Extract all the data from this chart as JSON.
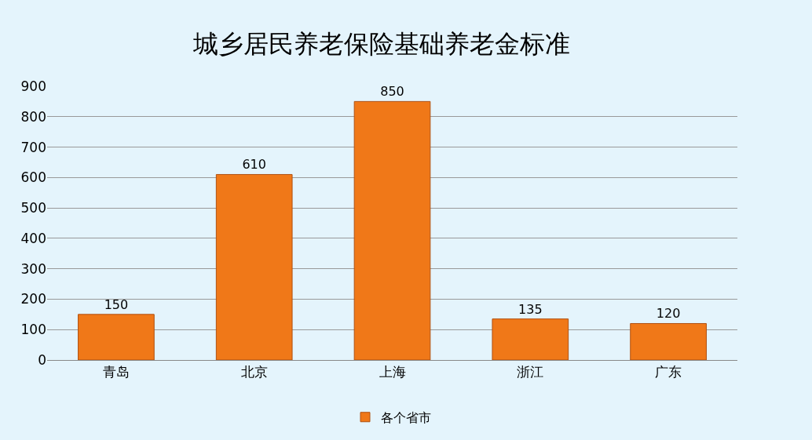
{
  "chart_data": {
    "type": "bar",
    "title": "城乡居民养老保险基础养老金标准",
    "categories": [
      "青岛",
      "北京",
      "上海",
      "浙江",
      "广东"
    ],
    "series": [
      {
        "name": "各个省市",
        "color": "#f07818",
        "values": [
          150,
          610,
          850,
          135,
          120
        ]
      }
    ],
    "ylim": [
      0,
      900
    ],
    "yticks": [
      0,
      100,
      200,
      300,
      400,
      500,
      600,
      700,
      800,
      900
    ],
    "grid": "y",
    "legend": "bottom",
    "data_labels": true
  }
}
